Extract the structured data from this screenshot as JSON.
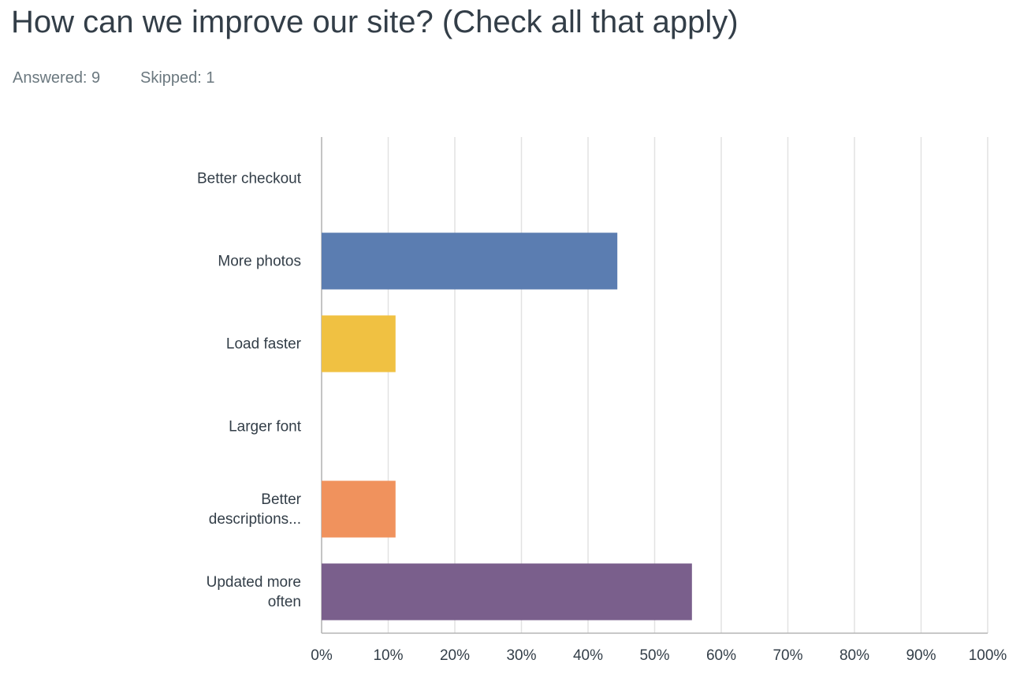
{
  "chart_data": {
    "type": "hbar",
    "title": "How can we improve our site? (Check all that apply)",
    "stats": [
      "Answered: 9",
      "Skipped: 1"
    ],
    "categories": [
      "Better checkout",
      "More photos",
      "Load faster",
      "Larger font",
      "Better descriptions...",
      "Updated more often"
    ],
    "values": [
      0,
      44.4,
      11.1,
      0,
      11.1,
      55.6
    ],
    "colors": [
      "#62b6c0",
      "#5b7db1",
      "#f0c142",
      "#a3c76b",
      "#f0925d",
      "#7a5f8c"
    ],
    "xlim": [
      0,
      100
    ],
    "xticks": [
      {
        "value": 0,
        "label": "0%"
      },
      {
        "value": 10,
        "label": "10%"
      },
      {
        "value": 20,
        "label": "20%"
      },
      {
        "value": 30,
        "label": "30%"
      },
      {
        "value": 40,
        "label": "40%"
      },
      {
        "value": 50,
        "label": "50%"
      },
      {
        "value": 60,
        "label": "60%"
      },
      {
        "value": 70,
        "label": "70%"
      },
      {
        "value": 80,
        "label": "80%"
      },
      {
        "value": 90,
        "label": "90%"
      },
      {
        "value": 100,
        "label": "100%"
      }
    ],
    "grid": true
  }
}
